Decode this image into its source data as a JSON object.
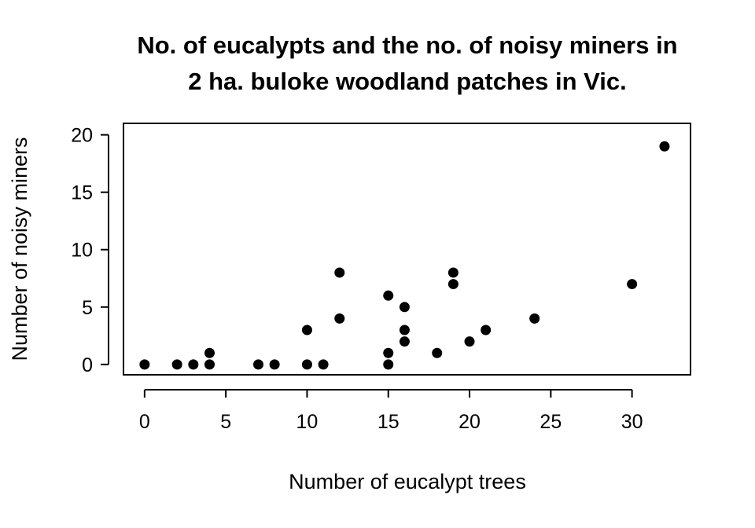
{
  "chart_data": {
    "type": "scatter",
    "title_lines": [
      "No. of eucalypts and the no. of noisy miners in",
      "2 ha. buloke woodland patches in Vic."
    ],
    "xlabel": "Number of eucalypt trees",
    "ylabel": "Number of noisy miners",
    "xlim": [
      -1.3,
      33.6
    ],
    "ylim": [
      -0.9,
      21
    ],
    "xticks": [
      0,
      5,
      10,
      15,
      20,
      25,
      30
    ],
    "yticks": [
      0,
      5,
      10,
      15,
      20
    ],
    "grid": false,
    "marker_color": "#000000",
    "points": [
      {
        "x": 0,
        "y": 0
      },
      {
        "x": 2,
        "y": 0
      },
      {
        "x": 3,
        "y": 0
      },
      {
        "x": 4,
        "y": 0
      },
      {
        "x": 4,
        "y": 1
      },
      {
        "x": 7,
        "y": 0
      },
      {
        "x": 8,
        "y": 0
      },
      {
        "x": 10,
        "y": 0
      },
      {
        "x": 10,
        "y": 3
      },
      {
        "x": 11,
        "y": 0
      },
      {
        "x": 12,
        "y": 4
      },
      {
        "x": 12,
        "y": 8
      },
      {
        "x": 15,
        "y": 0
      },
      {
        "x": 15,
        "y": 1
      },
      {
        "x": 15,
        "y": 6
      },
      {
        "x": 16,
        "y": 2
      },
      {
        "x": 16,
        "y": 3
      },
      {
        "x": 16,
        "y": 5
      },
      {
        "x": 18,
        "y": 1
      },
      {
        "x": 19,
        "y": 7
      },
      {
        "x": 19,
        "y": 8
      },
      {
        "x": 20,
        "y": 2
      },
      {
        "x": 21,
        "y": 3
      },
      {
        "x": 24,
        "y": 4
      },
      {
        "x": 30,
        "y": 7
      },
      {
        "x": 32,
        "y": 19
      }
    ]
  }
}
